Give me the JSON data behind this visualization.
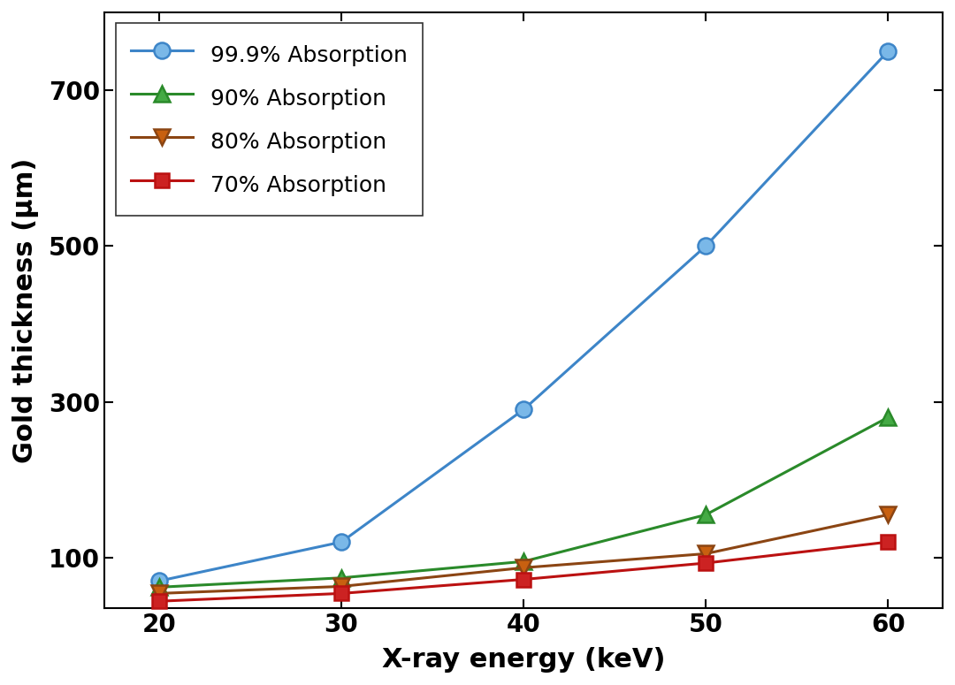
{
  "x": [
    20,
    30,
    40,
    50,
    60
  ],
  "series": [
    {
      "label": "99.9% Absorption",
      "color": "#3d85c8",
      "marker": "o",
      "marker_facecolor": "#7ab8e8",
      "markersize": 13,
      "linewidth": 2.2,
      "y": [
        70,
        120,
        290,
        500,
        750
      ]
    },
    {
      "label": "90% Absorption",
      "color": "#2a8a2a",
      "marker": "^",
      "marker_facecolor": "#44aa44",
      "markersize": 13,
      "linewidth": 2.2,
      "y": [
        62,
        74,
        95,
        155,
        280
      ]
    },
    {
      "label": "80% Absorption",
      "color": "#8B4513",
      "marker": "v",
      "marker_facecolor": "#c86010",
      "markersize": 13,
      "linewidth": 2.2,
      "y": [
        54,
        63,
        87,
        105,
        155
      ]
    },
    {
      "label": "70% Absorption",
      "color": "#bb1111",
      "marker": "s",
      "marker_facecolor": "#cc2222",
      "markersize": 11,
      "linewidth": 2.2,
      "y": [
        44,
        54,
        72,
        93,
        120
      ]
    }
  ],
  "xlabel": "X-ray energy (keV)",
  "ylabel": "Gold thickness (μm)",
  "xlim": [
    17,
    63
  ],
  "ylim": [
    35,
    800
  ],
  "yticks": [
    100,
    300,
    500,
    700
  ],
  "xticks": [
    20,
    30,
    40,
    50,
    60
  ],
  "background_color": "#ffffff",
  "legend_loc": "upper left",
  "label_fontsize": 22,
  "tick_fontsize": 20,
  "legend_fontsize": 18
}
